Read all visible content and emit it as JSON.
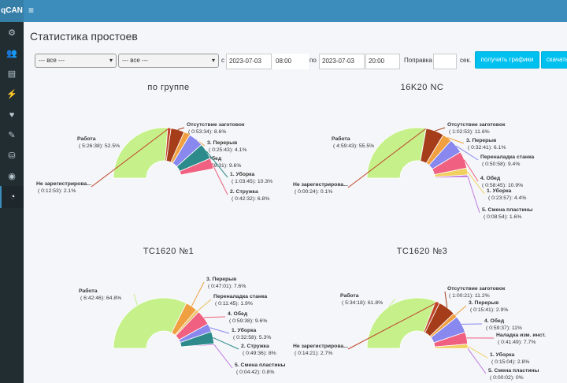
{
  "app": {
    "logo": "qCAN"
  },
  "sidebar": {
    "items": [
      {
        "icon": "gear-icon",
        "glyph": "⚙"
      },
      {
        "icon": "users-icon",
        "glyph": "👥"
      },
      {
        "icon": "document-icon",
        "glyph": "▤"
      },
      {
        "icon": "plug-icon",
        "glyph": "⚡"
      },
      {
        "icon": "heartbeat-icon",
        "glyph": "♥"
      },
      {
        "icon": "wrench-icon",
        "glyph": "✎"
      },
      {
        "icon": "sitemap-icon",
        "glyph": "⛁"
      },
      {
        "icon": "eye-icon",
        "glyph": "◉"
      },
      {
        "icon": "pie-chart-icon",
        "glyph": "◔"
      }
    ]
  },
  "page": {
    "title": "Статистика простоев"
  },
  "filters": {
    "select1": "--- все ---",
    "select2": "--- все ---",
    "from_label": "с",
    "date_from": "2023-07-03",
    "time_from": "08:00",
    "to_label": "по",
    "date_to": "2023-07-03",
    "time_to": "20:00",
    "correction_label": "Поправка",
    "correction_value": "",
    "sec_label": "сек.",
    "get_charts_button": "получить графики",
    "download_button": "скачать"
  },
  "chart_data": [
    {
      "type": "pie",
      "title": "по группе",
      "slices": [
        {
          "label": "Работа",
          "time": "5:26:38",
          "percent": 52.5,
          "color": "#c5f08a"
        },
        {
          "label": "Не зарегистрирова...",
          "time": "0:12:53",
          "percent": 2.1,
          "color": "#c0442a"
        },
        {
          "label": "Отсутствие заготовок",
          "time": "0:53:34",
          "percent": 8.6,
          "color": "#a63d1a"
        },
        {
          "label": "3. Перерыв",
          "time": "0:25:43",
          "percent": 4.1,
          "color": "#f0a040"
        },
        {
          "label": "4. Обед",
          "time": "0:59:31",
          "percent": 9.6,
          "color": "#8888ee"
        },
        {
          "label": "1. Уборка",
          "time": "1:03:45",
          "percent": 10.3,
          "color": "#2e8b8b"
        },
        {
          "label": "2. Стружка",
          "time": "0:42:32",
          "percent": 6.8,
          "color": "#f06080"
        }
      ]
    },
    {
      "type": "pie",
      "title": "16K20 NC",
      "slices": [
        {
          "label": "Работа",
          "time": "4:59:43",
          "percent": 55.5,
          "color": "#c5f08a"
        },
        {
          "label": "Не зарегистрирова...",
          "time": "0:00:24",
          "percent": 0.1,
          "color": "#c0442a"
        },
        {
          "label": "Отсутствие заготовок",
          "time": "1:02:53",
          "percent": 11.6,
          "color": "#a63d1a"
        },
        {
          "label": "3. Перерыв",
          "time": "0:32:41",
          "percent": 6.1,
          "color": "#f0a040"
        },
        {
          "label": "Переналадка станка",
          "time": "0:50:58",
          "percent": 9.4,
          "color": "#8888ee"
        },
        {
          "label": "4. Обед",
          "time": "0:58:45",
          "percent": 10.9,
          "color": "#f06080"
        },
        {
          "label": "1. Уборка",
          "time": "0:23:57",
          "percent": 4.4,
          "color": "#f0d060"
        },
        {
          "label": "5. Смена пластины",
          "time": "0:08:54",
          "percent": 1.6,
          "color": "#c07ae0"
        }
      ]
    },
    {
      "type": "pie",
      "title": "TC1620 №1",
      "slices": [
        {
          "label": "Работа",
          "time": "6:42:46",
          "percent": 64.8,
          "color": "#c5f08a"
        },
        {
          "label": "3. Перерыв",
          "time": "0:47:01",
          "percent": 7.6,
          "color": "#f0a040"
        },
        {
          "label": "Переналадка станка",
          "time": "0:11:45",
          "percent": 1.9,
          "color": "#e8c060"
        },
        {
          "label": "4. Обед",
          "time": "0:59:38",
          "percent": 9.6,
          "color": "#f06080"
        },
        {
          "label": "1. Уборка",
          "time": "0:32:58",
          "percent": 5.3,
          "color": "#8888ee"
        },
        {
          "label": "2. Стружка",
          "time": "0:49:36",
          "percent": 8,
          "color": "#2e8b8b"
        },
        {
          "label": "5. Смена пластины",
          "time": "0:04:42",
          "percent": 0.8,
          "color": "#c07ae0"
        }
      ]
    },
    {
      "type": "pie",
      "title": "TC1620 №3",
      "slices": [
        {
          "label": "Работа",
          "time": "5:34:18",
          "percent": 61.8,
          "color": "#c5f08a"
        },
        {
          "label": "Не зарегистрирова...",
          "time": "0:14:21",
          "percent": 2.7,
          "color": "#c0442a"
        },
        {
          "label": "Отсутствие заготовок",
          "time": "1:00:21",
          "percent": 11.2,
          "color": "#a63d1a"
        },
        {
          "label": "3. Перерыв",
          "time": "0:15:41",
          "percent": 2.9,
          "color": "#f0a040"
        },
        {
          "label": "4. Обед",
          "time": "0:59:37",
          "percent": 11,
          "color": "#8888ee"
        },
        {
          "label": "Наладка изм. инст.",
          "time": "0:41:49",
          "percent": 7.7,
          "color": "#f06080"
        },
        {
          "label": "1. Уборка",
          "time": "0:15:04",
          "percent": 2.8,
          "color": "#f0d060"
        },
        {
          "label": "5. Смена пластины",
          "time": "0:00:02",
          "percent": 0,
          "color": "#c07ae0"
        }
      ]
    }
  ]
}
